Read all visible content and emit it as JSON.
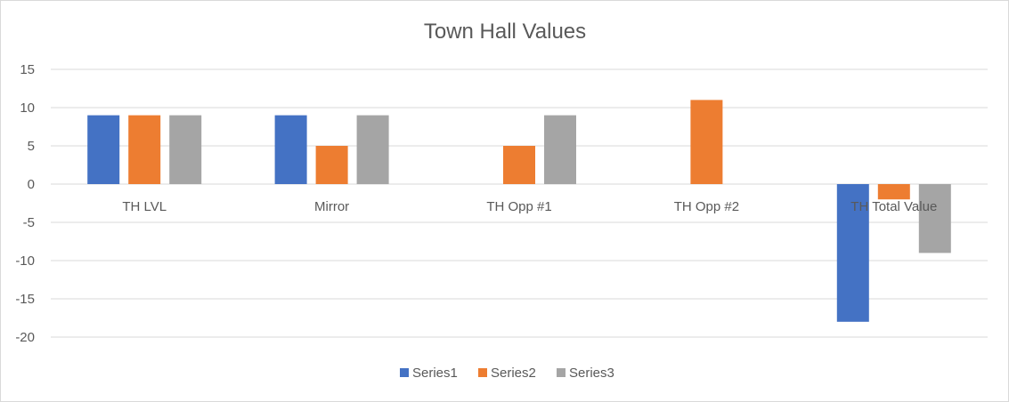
{
  "chart_data": {
    "type": "bar",
    "title": "Town Hall Values",
    "xlabel": "",
    "ylabel": "",
    "categories": [
      "TH LVL",
      "Mirror",
      "TH Opp #1",
      "TH Opp #2",
      "TH Total Value"
    ],
    "series": [
      {
        "name": "Series1",
        "color": "#4472c4",
        "values": [
          9,
          9,
          0,
          0,
          -18
        ]
      },
      {
        "name": "Series2",
        "color": "#ed7d31",
        "values": [
          9,
          5,
          5,
          11,
          -2
        ]
      },
      {
        "name": "Series3",
        "color": "#a5a5a5",
        "values": [
          9,
          9,
          9,
          0,
          -9
        ]
      }
    ],
    "ylim": [
      -20,
      15
    ],
    "yticks": [
      15,
      10,
      5,
      0,
      -5,
      -10,
      -15,
      -20
    ],
    "grid": true,
    "legend_position": "bottom"
  }
}
